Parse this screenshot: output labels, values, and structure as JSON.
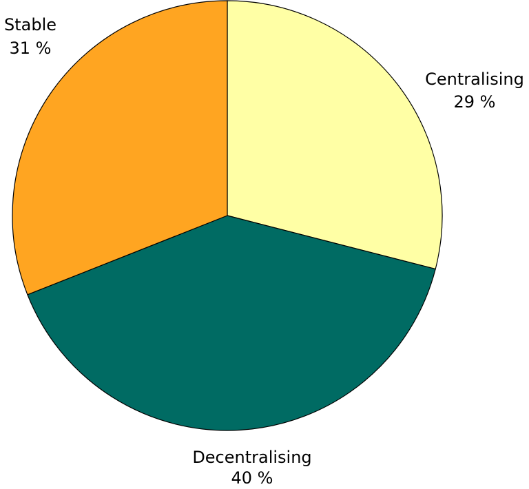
{
  "chart_data": {
    "type": "pie",
    "title": "",
    "start_angle_deg": 0,
    "direction": "clockwise",
    "slices": [
      {
        "label": "Centralising",
        "value": 29,
        "value_text": "29 %",
        "color": "#FFFFA5"
      },
      {
        "label": "Decentralising",
        "value": 40,
        "value_text": "40 %",
        "color": "#006B63"
      },
      {
        "label": "Stable",
        "value": 31,
        "value_text": "31 %",
        "color": "#FFA521"
      }
    ]
  }
}
